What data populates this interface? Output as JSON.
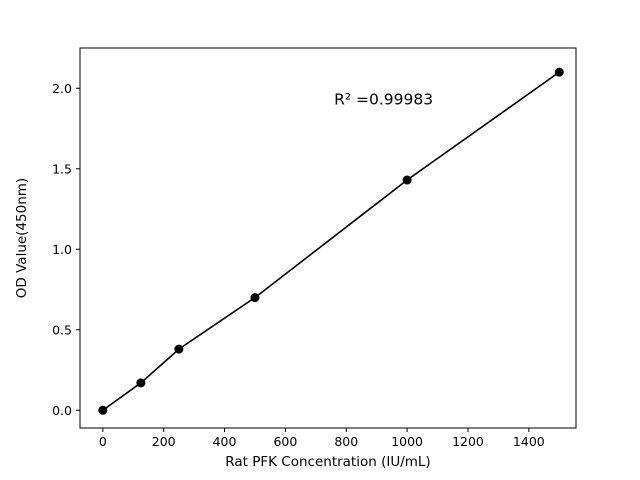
{
  "chart_data": {
    "type": "scatter",
    "title": "",
    "xlabel": "Rat PFK Concentration (IU/mL)",
    "ylabel": "OD Value(450nm)",
    "annotation": "R² =0.99983",
    "annotation_pos": {
      "x": 760,
      "y": 1.9
    },
    "series": [
      {
        "name": "standard-curve",
        "x": [
          0,
          125,
          250,
          500,
          1000,
          1500
        ],
        "y": [
          0.0,
          0.17,
          0.38,
          0.7,
          1.43,
          2.1
        ]
      }
    ],
    "xlim": [
      -75,
      1555
    ],
    "ylim": [
      -0.11,
      2.25
    ],
    "xticks": [
      0,
      200,
      400,
      600,
      800,
      1000,
      1200,
      1400
    ],
    "xtick_labels": [
      "0",
      "200",
      "400",
      "600",
      "800",
      "1000",
      "1200",
      "1400"
    ],
    "yticks": [
      0.0,
      0.5,
      1.0,
      1.5,
      2.0
    ],
    "ytick_labels": [
      "0.0",
      "0.5",
      "1.0",
      "1.5",
      "2.0"
    ],
    "grid": false,
    "legend": "none",
    "line_color": "#000000",
    "marker_color": "#000000",
    "frame_color": "#000000",
    "background_color": "#ffffff"
  }
}
